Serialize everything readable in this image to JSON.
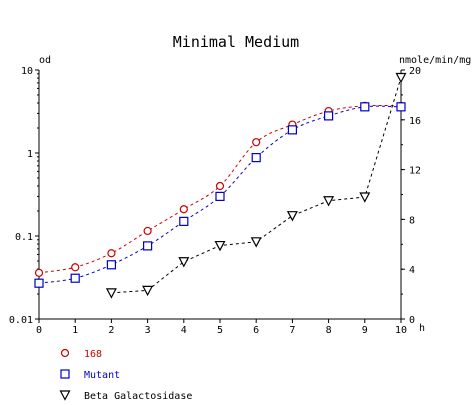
{
  "chart_data": {
    "type": "line",
    "title": "Minimal Medium",
    "xlabel": "h",
    "ylabel_left": "od",
    "ylabel_right": "nmole/min/mg",
    "x_range": [
      0,
      10
    ],
    "x_ticks": [
      "0",
      "1",
      "2",
      "3",
      "4",
      "5",
      "6",
      "7",
      "8",
      "9",
      "10"
    ],
    "y_left": {
      "scale": "log",
      "range": [
        0.01,
        10
      ],
      "ticks": [
        "0.01",
        "0.1",
        "1",
        "10"
      ]
    },
    "y_right": {
      "scale": "linear",
      "range": [
        0,
        20
      ],
      "ticks": [
        "0",
        "4",
        "8",
        "12",
        "16",
        "20"
      ]
    },
    "grid": false,
    "legend_placement": "bottom-left",
    "series": [
      {
        "name": "168",
        "axis": "left",
        "marker": "circle",
        "style": "dashed",
        "color": "#cc0000",
        "x": [
          0,
          1,
          2,
          3,
          4,
          5,
          6,
          7,
          8,
          9,
          10
        ],
        "y": [
          0.036,
          0.042,
          0.062,
          0.115,
          0.21,
          0.4,
          1.35,
          2.2,
          3.2,
          3.7,
          3.7
        ]
      },
      {
        "name": "Mutant",
        "axis": "left",
        "marker": "square",
        "style": "dashed",
        "color": "#0000cc",
        "x": [
          0,
          1,
          2,
          3,
          4,
          5,
          6,
          7,
          8,
          9,
          10
        ],
        "y": [
          0.027,
          0.031,
          0.045,
          0.076,
          0.15,
          0.3,
          0.88,
          1.9,
          2.8,
          3.6,
          3.6
        ]
      },
      {
        "name": "Beta Galactosidase",
        "axis": "right",
        "marker": "triangle-down",
        "style": "dashed",
        "color": "#000000",
        "x": [
          2,
          3,
          4,
          5,
          6,
          7,
          8,
          9,
          10
        ],
        "y": [
          2.1,
          2.3,
          4.6,
          5.9,
          6.2,
          8.3,
          9.5,
          9.8,
          19.4
        ]
      }
    ]
  }
}
